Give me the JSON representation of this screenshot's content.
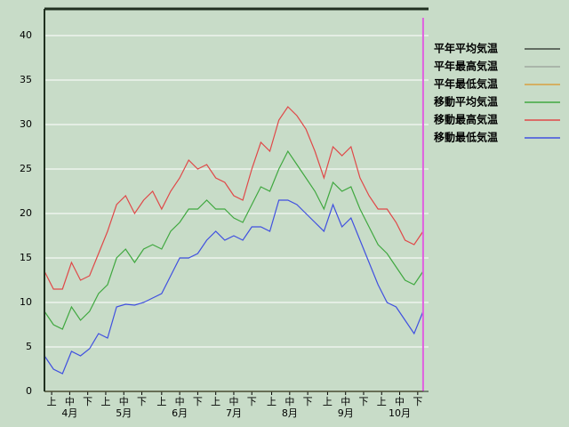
{
  "chart_data": {
    "type": "line",
    "xlim": [
      0,
      213
    ],
    "ylim": [
      0,
      43
    ],
    "yticks": [
      0,
      5,
      10,
      15,
      20,
      25,
      30,
      35,
      40
    ],
    "grid": true,
    "legend": "right",
    "background": "#c8dcc8",
    "xticks": [
      {
        "value": 4,
        "label": "上"
      },
      {
        "value": 14,
        "label": "中"
      },
      {
        "value": 24,
        "label": "下"
      },
      {
        "value": 34,
        "label": "上"
      },
      {
        "value": 44,
        "label": "中"
      },
      {
        "value": 54,
        "label": "下"
      },
      {
        "value": 65,
        "label": "上"
      },
      {
        "value": 75,
        "label": "中"
      },
      {
        "value": 85,
        "label": "下"
      },
      {
        "value": 95,
        "label": "上"
      },
      {
        "value": 105,
        "label": "中"
      },
      {
        "value": 115,
        "label": "下"
      },
      {
        "value": 126,
        "label": "上"
      },
      {
        "value": 136,
        "label": "中"
      },
      {
        "value": 146,
        "label": "下"
      },
      {
        "value": 157,
        "label": "上"
      },
      {
        "value": 167,
        "label": "中"
      },
      {
        "value": 177,
        "label": "下"
      },
      {
        "value": 187,
        "label": "上"
      },
      {
        "value": 197,
        "label": "中"
      },
      {
        "value": 207,
        "label": "下"
      }
    ],
    "month_labels": [
      {
        "value": 14,
        "label": "4月"
      },
      {
        "value": 44,
        "label": "5月"
      },
      {
        "value": 75,
        "label": "6月"
      },
      {
        "value": 105,
        "label": "7月"
      },
      {
        "value": 136,
        "label": "8月"
      },
      {
        "value": 167,
        "label": "9月"
      },
      {
        "value": 197,
        "label": "10月"
      }
    ],
    "today_x": 210,
    "today_color": "#e060e0",
    "x": [
      0,
      5,
      10,
      15,
      20,
      25,
      30,
      35,
      40,
      45,
      50,
      55,
      60,
      65,
      70,
      75,
      80,
      85,
      90,
      95,
      100,
      105,
      110,
      115,
      120,
      125,
      130,
      135,
      140,
      145,
      150,
      155,
      160,
      165,
      170,
      175,
      180,
      185,
      190,
      195,
      200,
      205,
      210
    ],
    "series": [
      {
        "name": "平年平均気温",
        "color": "#404840",
        "values": [
          0,
          0,
          0,
          0,
          0,
          0,
          0,
          0,
          0,
          0,
          0,
          0,
          0,
          0,
          0,
          0,
          0,
          0,
          0,
          0,
          0,
          0,
          0,
          0,
          0,
          0,
          0,
          0,
          0,
          0,
          0,
          0,
          0,
          0,
          0,
          0,
          0,
          0,
          0,
          0,
          0,
          0,
          0
        ]
      },
      {
        "name": "平年最高気温",
        "color": "#a0a8a0",
        "values": [
          0,
          0,
          0,
          0,
          0,
          0,
          0,
          0,
          0,
          0,
          0,
          0,
          0,
          0,
          0,
          0,
          0,
          0,
          0,
          0,
          0,
          0,
          0,
          0,
          0,
          0,
          0,
          0,
          0,
          0,
          0,
          0,
          0,
          0,
          0,
          0,
          0,
          0,
          0,
          0,
          0,
          0,
          0
        ]
      },
      {
        "name": "平年最低気温",
        "color": "#d8a040",
        "values": [
          0,
          0,
          0,
          0,
          0,
          0,
          0,
          0,
          0,
          0,
          0,
          0,
          0,
          0,
          0,
          0,
          0,
          0,
          0,
          0,
          0,
          0,
          0,
          0,
          0,
          0,
          0,
          0,
          0,
          0,
          0,
          0,
          0,
          0,
          0,
          0,
          0,
          0,
          0,
          0,
          0,
          0,
          0
        ]
      },
      {
        "name": "移動平均気温",
        "color": "#40a840",
        "values": [
          9,
          7.5,
          7,
          9.5,
          8,
          9,
          11,
          12,
          15,
          16,
          14.5,
          16,
          16.5,
          16,
          18,
          19,
          20.5,
          20.5,
          21.5,
          20.5,
          20.5,
          19.5,
          19,
          21,
          23,
          22.5,
          25,
          27,
          25.5,
          24,
          22.5,
          20.5,
          23.5,
          22.5,
          23,
          20.5,
          18.5,
          16.5,
          15.5,
          14,
          12.5,
          12,
          13.5
        ]
      },
      {
        "name": "移動最高気温",
        "color": "#e04848",
        "values": [
          13.5,
          11.5,
          11.5,
          14.5,
          12.5,
          13,
          15.5,
          18,
          21,
          22,
          20,
          21.5,
          22.5,
          20.5,
          22.5,
          24,
          26,
          25,
          25.5,
          24,
          23.5,
          22,
          21.5,
          25,
          28,
          27,
          30.5,
          32,
          31,
          29.5,
          27,
          24,
          27.5,
          26.5,
          27.5,
          24,
          22,
          20.5,
          20.5,
          19,
          17,
          16.5,
          18
        ]
      },
      {
        "name": "移動最低気温",
        "color": "#4050e0",
        "values": [
          4,
          2.5,
          2,
          4.5,
          4,
          4.8,
          6.5,
          6,
          9.5,
          9.8,
          9.7,
          10,
          10.5,
          11,
          13,
          15,
          15,
          15.5,
          17,
          18,
          17,
          17.5,
          17,
          18.5,
          18.5,
          18,
          21.5,
          21.5,
          21,
          20,
          19,
          18,
          21,
          18.5,
          19.5,
          17,
          14.5,
          12,
          10,
          9.5,
          8,
          6.5,
          9
        ]
      }
    ]
  }
}
